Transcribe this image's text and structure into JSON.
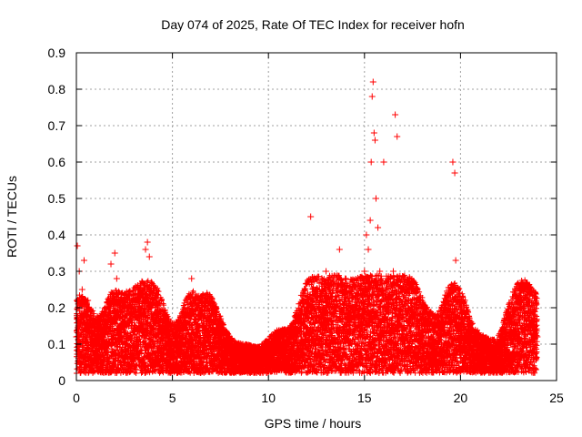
{
  "chart_data": {
    "type": "scatter",
    "title": "Day 074 of 2025, Rate Of TEC Index for receiver hofn",
    "xlabel": "GPS time / hours",
    "ylabel": "ROTI / TECUs",
    "xlim": [
      0,
      25
    ],
    "ylim": [
      0,
      0.9
    ],
    "xticks": [
      "0",
      "5",
      "10",
      "15",
      "20",
      "25"
    ],
    "yticks": [
      "0",
      "0.1",
      "0.2",
      "0.3",
      "0.4",
      "0.5",
      "0.6",
      "0.7",
      "0.8",
      "0.9"
    ],
    "grid": true,
    "marker": "+",
    "series": [
      {
        "name": "ROTI",
        "color": "#ff0000",
        "x": [
          0.0,
          0.05,
          0.1,
          0.15,
          0.2,
          0.3,
          0.4,
          0.5,
          0.55,
          0.6,
          0.7,
          0.8,
          1.0,
          1.2,
          1.5,
          1.8,
          2.0,
          2.1,
          2.2,
          2.5,
          2.8,
          3.0,
          3.2,
          3.5,
          3.6,
          3.7,
          3.8,
          3.9,
          4.0,
          4.2,
          4.5,
          4.8,
          5.0,
          5.5,
          6.0,
          6.2,
          6.5,
          6.8,
          7.0,
          7.2,
          7.5,
          8.0,
          8.5,
          9.0,
          9.5,
          10.0,
          10.5,
          11.0,
          11.5,
          12.0,
          12.2,
          12.5,
          13.0,
          13.5,
          13.7,
          14.0,
          14.5,
          14.8,
          15.0,
          15.1,
          15.2,
          15.3,
          15.35,
          15.4,
          15.45,
          15.5,
          15.55,
          15.6,
          15.7,
          15.8,
          15.9,
          16.0,
          16.2,
          16.5,
          16.6,
          16.7,
          17.0,
          17.2,
          17.5,
          18.0,
          18.5,
          19.0,
          19.5,
          19.6,
          19.7,
          19.75,
          20.0,
          20.5,
          21.0,
          21.5,
          22.0,
          22.5,
          22.8,
          23.0,
          23.3,
          23.5,
          23.8,
          24.0
        ],
        "y": [
          0.12,
          0.37,
          0.15,
          0.3,
          0.1,
          0.25,
          0.33,
          0.18,
          0.08,
          0.22,
          0.12,
          0.09,
          0.07,
          0.1,
          0.13,
          0.32,
          0.35,
          0.28,
          0.11,
          0.15,
          0.2,
          0.14,
          0.26,
          0.18,
          0.36,
          0.38,
          0.34,
          0.27,
          0.16,
          0.2,
          0.13,
          0.1,
          0.08,
          0.12,
          0.28,
          0.18,
          0.1,
          0.24,
          0.2,
          0.12,
          0.09,
          0.07,
          0.06,
          0.06,
          0.05,
          0.07,
          0.1,
          0.08,
          0.12,
          0.2,
          0.45,
          0.25,
          0.3,
          0.2,
          0.36,
          0.28,
          0.18,
          0.25,
          0.3,
          0.4,
          0.36,
          0.44,
          0.6,
          0.78,
          0.82,
          0.68,
          0.66,
          0.5,
          0.42,
          0.3,
          0.22,
          0.6,
          0.28,
          0.3,
          0.73,
          0.67,
          0.28,
          0.25,
          0.2,
          0.15,
          0.12,
          0.1,
          0.18,
          0.6,
          0.57,
          0.33,
          0.15,
          0.1,
          0.08,
          0.07,
          0.06,
          0.12,
          0.18,
          0.2,
          0.25,
          0.22,
          0.18,
          0.12
        ]
      }
    ],
    "marker_color": "#ff0000"
  }
}
